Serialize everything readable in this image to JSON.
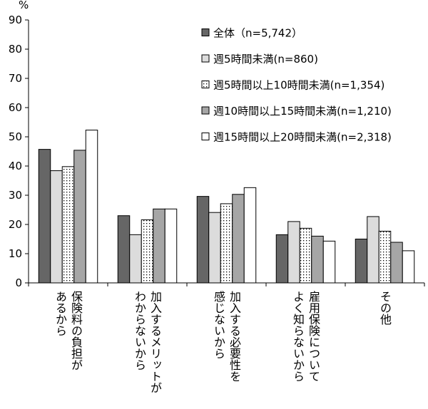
{
  "chart_data": {
    "type": "bar",
    "title": "",
    "xlabel": "",
    "ylabel": "",
    "unit": "%",
    "ylim": [
      0,
      90
    ],
    "yticks": [
      0,
      10,
      20,
      30,
      40,
      50,
      60,
      70,
      80,
      90
    ],
    "ytick_labels": [
      "0",
      "10",
      "20",
      "30",
      "40",
      "50",
      "60",
      "70",
      "80",
      "90"
    ],
    "grid": false,
    "legend_position": "top-right",
    "categories": [
      [
        "保険料の負担が",
        "あるから"
      ],
      [
        "加入するメリットが",
        "わからないから"
      ],
      [
        "加入する必要性を",
        "感じないから"
      ],
      [
        "雇用保険について",
        "よく知らないから"
      ],
      [
        "その他"
      ]
    ],
    "series": [
      {
        "name": "全体（n=5,742）",
        "values": [
          45.7,
          23.0,
          29.6,
          16.5,
          15.0
        ],
        "fill": "dark-gray"
      },
      {
        "name": "週5時間未満(n=860)",
        "values": [
          38.4,
          16.5,
          24.1,
          21.0,
          22.7
        ],
        "fill": "light-gray"
      },
      {
        "name": "週5時間以上10時間未満(n=1,354)",
        "values": [
          39.8,
          21.6,
          27.1,
          18.7,
          17.7
        ],
        "fill": "dotted"
      },
      {
        "name": "週10時間以上15時間未満(n=1,210)",
        "values": [
          45.4,
          25.3,
          30.3,
          16.0,
          13.9
        ],
        "fill": "medium-gray"
      },
      {
        "name": "週15時間以上20時間未満(n=2,318)",
        "values": [
          52.3,
          25.3,
          32.6,
          14.3,
          11.0
        ],
        "fill": "white"
      }
    ],
    "colors": {
      "dark-gray": "#666666",
      "light-gray": "#dcdcdc",
      "medium-gray": "#a6a6a6",
      "white": "#ffffff",
      "dot": "#000000",
      "stroke": "#000000"
    }
  }
}
